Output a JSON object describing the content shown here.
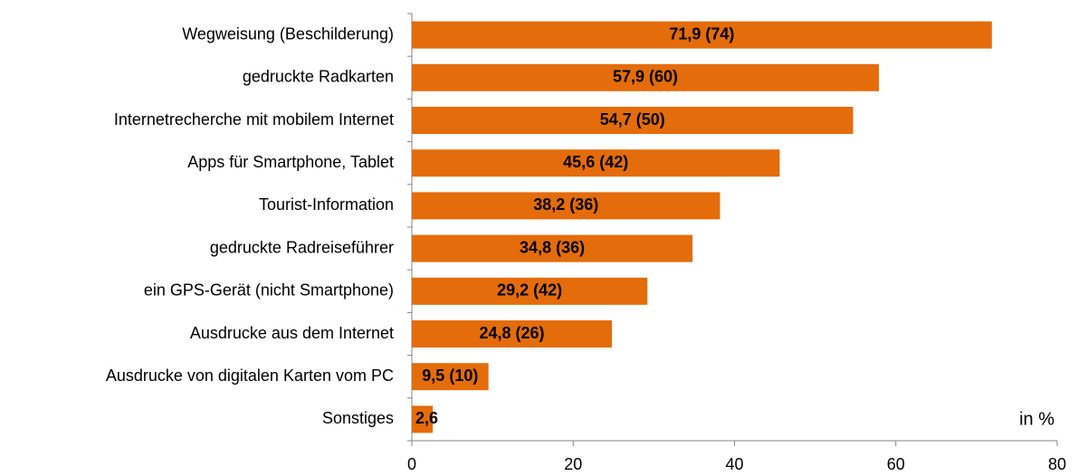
{
  "chart_data": {
    "type": "bar",
    "orientation": "horizontal",
    "categories": [
      "Wegweisung (Beschilderung)",
      "gedruckte Radkarten",
      "Internetrecherche mit mobilem Internet",
      "Apps für Smartphone, Tablet",
      "Tourist-Information",
      "gedruckte Radreiseführer",
      "ein GPS-Gerät (nicht Smartphone)",
      "Ausdrucke aus dem Internet",
      "Ausdrucke von digitalen Karten vom PC",
      "Sonstiges"
    ],
    "values": [
      71.9,
      57.9,
      54.7,
      45.6,
      38.2,
      34.8,
      29.2,
      24.8,
      9.5,
      2.6
    ],
    "value_labels": [
      "71,9 (74)",
      "57,9 (60)",
      "54,7 (50)",
      "45,6 (42)",
      "38,2 (36)",
      "34,8 (36)",
      "29,2 (42)",
      "24,8 (26)",
      "9,5 (10)",
      "2,6"
    ],
    "color": "#e46c0a",
    "xlim": [
      0,
      80
    ],
    "xticks": [
      0,
      20,
      40,
      60,
      80
    ],
    "annotation": "in %",
    "grid": false
  }
}
